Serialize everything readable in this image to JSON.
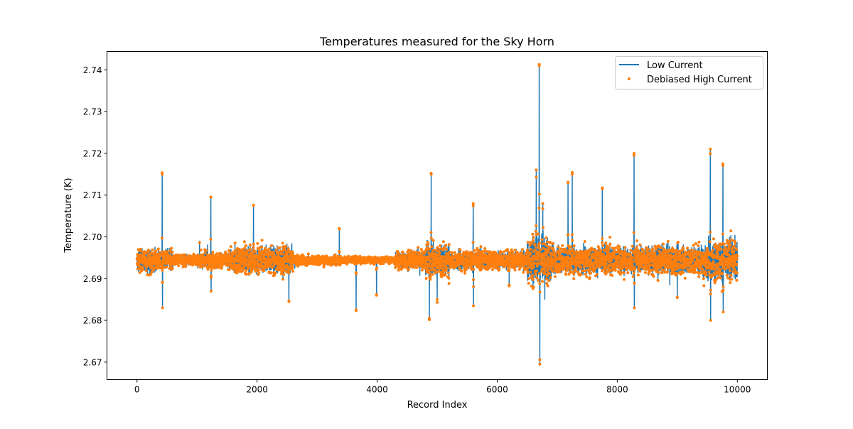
{
  "chart_data": {
    "type": "line",
    "title": "Temperatures measured for the Sky Horn",
    "xlabel": "Record Index",
    "ylabel": "Temperature (K)",
    "xlim": [
      -500,
      10500
    ],
    "ylim": [
      2.6658,
      2.7444
    ],
    "xticks": [
      0,
      2000,
      4000,
      6000,
      8000,
      10000
    ],
    "xtick_labels": [
      "0",
      "2000",
      "4000",
      "6000",
      "8000",
      "10000"
    ],
    "yticks": [
      2.67,
      2.68,
      2.69,
      2.7,
      2.71,
      2.72,
      2.73,
      2.74
    ],
    "ytick_labels": [
      "2.67",
      "2.68",
      "2.69",
      "2.70",
      "2.71",
      "2.72",
      "2.73",
      "2.74"
    ],
    "grid": false,
    "legend_position": "top-right",
    "n_points": 10000,
    "baseline": 2.6944,
    "series": [
      {
        "name": "Low Current",
        "style": "line",
        "color": "#1f77b4"
      },
      {
        "name": "Debiased High Current",
        "style": "scatter",
        "color": "#ff7f0e"
      }
    ],
    "noise_segments": [
      {
        "from": 0,
        "to": 600,
        "sigma": 0.0019
      },
      {
        "from": 600,
        "to": 1000,
        "sigma": 0.0009
      },
      {
        "from": 1000,
        "to": 1600,
        "sigma": 0.0015
      },
      {
        "from": 1600,
        "to": 2600,
        "sigma": 0.0024
      },
      {
        "from": 2600,
        "to": 3400,
        "sigma": 0.0008
      },
      {
        "from": 3400,
        "to": 4300,
        "sigma": 0.0006
      },
      {
        "from": 4300,
        "to": 4800,
        "sigma": 0.0015
      },
      {
        "from": 4800,
        "to": 5200,
        "sigma": 0.0028
      },
      {
        "from": 5200,
        "to": 6500,
        "sigma": 0.0017
      },
      {
        "from": 6500,
        "to": 6900,
        "sigma": 0.0038
      },
      {
        "from": 6900,
        "to": 9400,
        "sigma": 0.0024
      },
      {
        "from": 9400,
        "to": 10000,
        "sigma": 0.0034
      }
    ],
    "spikes": [
      [
        420,
        2.715
      ],
      [
        425,
        2.683
      ],
      [
        1230,
        2.7095
      ],
      [
        1235,
        2.687
      ],
      [
        1940,
        2.7075
      ],
      [
        2530,
        2.6845
      ],
      [
        3370,
        2.702
      ],
      [
        3650,
        2.6825
      ],
      [
        3990,
        2.686
      ],
      [
        4870,
        2.6805
      ],
      [
        4900,
        2.715
      ],
      [
        5000,
        2.685
      ],
      [
        5600,
        2.708
      ],
      [
        5605,
        2.6835
      ],
      [
        6200,
        2.6885
      ],
      [
        6650,
        2.716
      ],
      [
        6700,
        2.741
      ],
      [
        6710,
        2.6695
      ],
      [
        6760,
        2.708
      ],
      [
        7180,
        2.713
      ],
      [
        7250,
        2.715
      ],
      [
        7750,
        2.7115
      ],
      [
        8280,
        2.7195
      ],
      [
        8285,
        2.683
      ],
      [
        9000,
        2.6855
      ],
      [
        9550,
        2.721
      ],
      [
        9555,
        2.68
      ],
      [
        9760,
        2.7175
      ],
      [
        9765,
        2.682
      ]
    ]
  }
}
